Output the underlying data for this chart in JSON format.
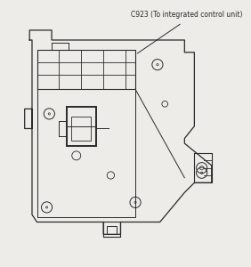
{
  "title": "C923 (To integrated control unit)",
  "bg_color": "#eeece8",
  "line_color": "#2a2a2a",
  "lw": 0.9,
  "ann_fs": 5.5,
  "fig_w": 2.82,
  "fig_h": 3.0,
  "dpi": 100
}
